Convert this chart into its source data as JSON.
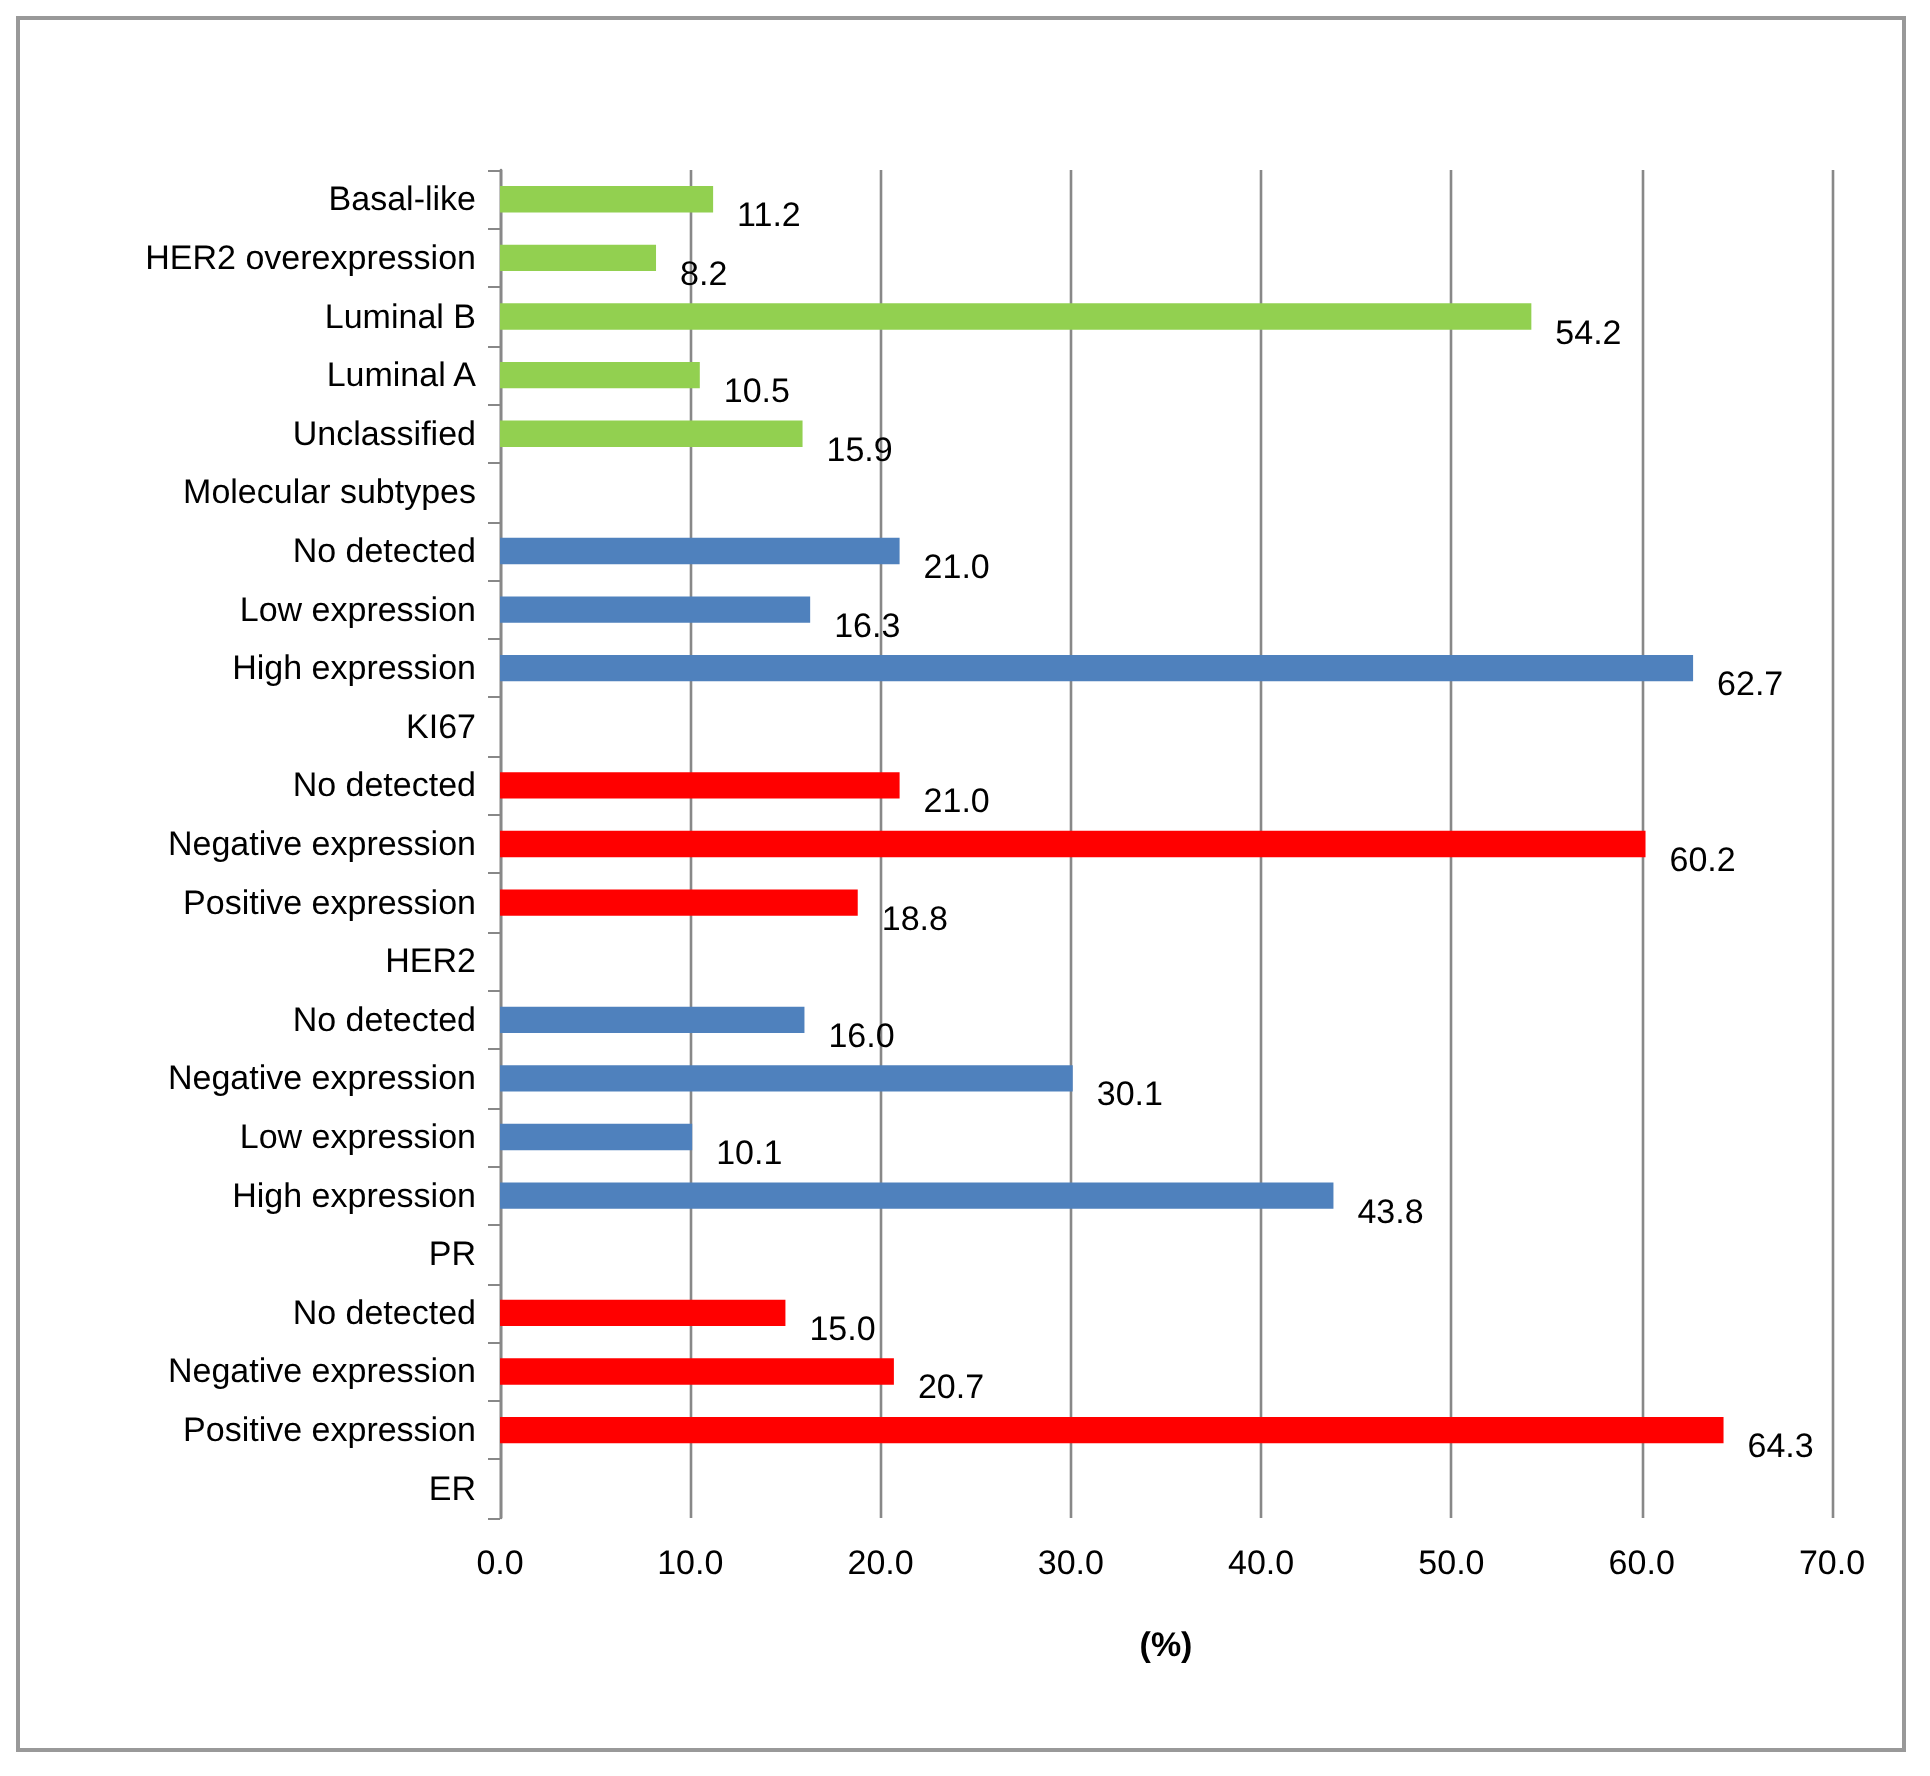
{
  "chart_data": {
    "type": "bar",
    "orientation": "horizontal",
    "xlabel": "(%)",
    "categories": [
      "Basal-like",
      "HER2 overexpression",
      "Luminal B",
      "Luminal A",
      "Unclassified",
      "Molecular subtypes",
      "No detected",
      "Low expression",
      "High expression",
      "KI67",
      "No detected",
      "Negative expression",
      "Positive expression",
      "HER2",
      "No detected",
      "Negative expression",
      "Low expression",
      "High expression",
      "PR",
      "No detected",
      "Negative expression",
      "Positive expression",
      "ER"
    ],
    "values": [
      11.2,
      8.2,
      54.2,
      10.5,
      15.9,
      null,
      21.0,
      16.3,
      62.7,
      null,
      21.0,
      60.2,
      18.8,
      null,
      16.0,
      30.1,
      10.1,
      43.8,
      null,
      15.0,
      20.7,
      64.3,
      null
    ],
    "value_labels": [
      "11.2",
      "8.2",
      "54.2",
      "10.5",
      "15.9",
      null,
      "21.0",
      "16.3",
      "62.7",
      null,
      "21.0",
      "60.2",
      "18.8",
      null,
      "16.0",
      "30.1",
      "10.1",
      "43.8",
      null,
      "15.0",
      "20.7",
      "64.3",
      null
    ],
    "colors": [
      "#92d050",
      "#92d050",
      "#92d050",
      "#92d050",
      "#92d050",
      null,
      "#4f81bd",
      "#4f81bd",
      "#4f81bd",
      null,
      "#ff0000",
      "#ff0000",
      "#ff0000",
      null,
      "#4f81bd",
      "#4f81bd",
      "#4f81bd",
      "#4f81bd",
      null,
      "#ff0000",
      "#ff0000",
      "#ff0000",
      null
    ],
    "xlim": [
      0,
      70
    ],
    "xticks": [
      {
        "value": 0,
        "label": "0.0"
      },
      {
        "value": 10,
        "label": "10.0"
      },
      {
        "value": 20,
        "label": "20.0"
      },
      {
        "value": 30,
        "label": "30.0"
      },
      {
        "value": 40,
        "label": "40.0"
      },
      {
        "value": 50,
        "label": "50.0"
      },
      {
        "value": 60,
        "label": "60.0"
      },
      {
        "value": 70,
        "label": "70.0"
      }
    ],
    "grid": "x"
  }
}
